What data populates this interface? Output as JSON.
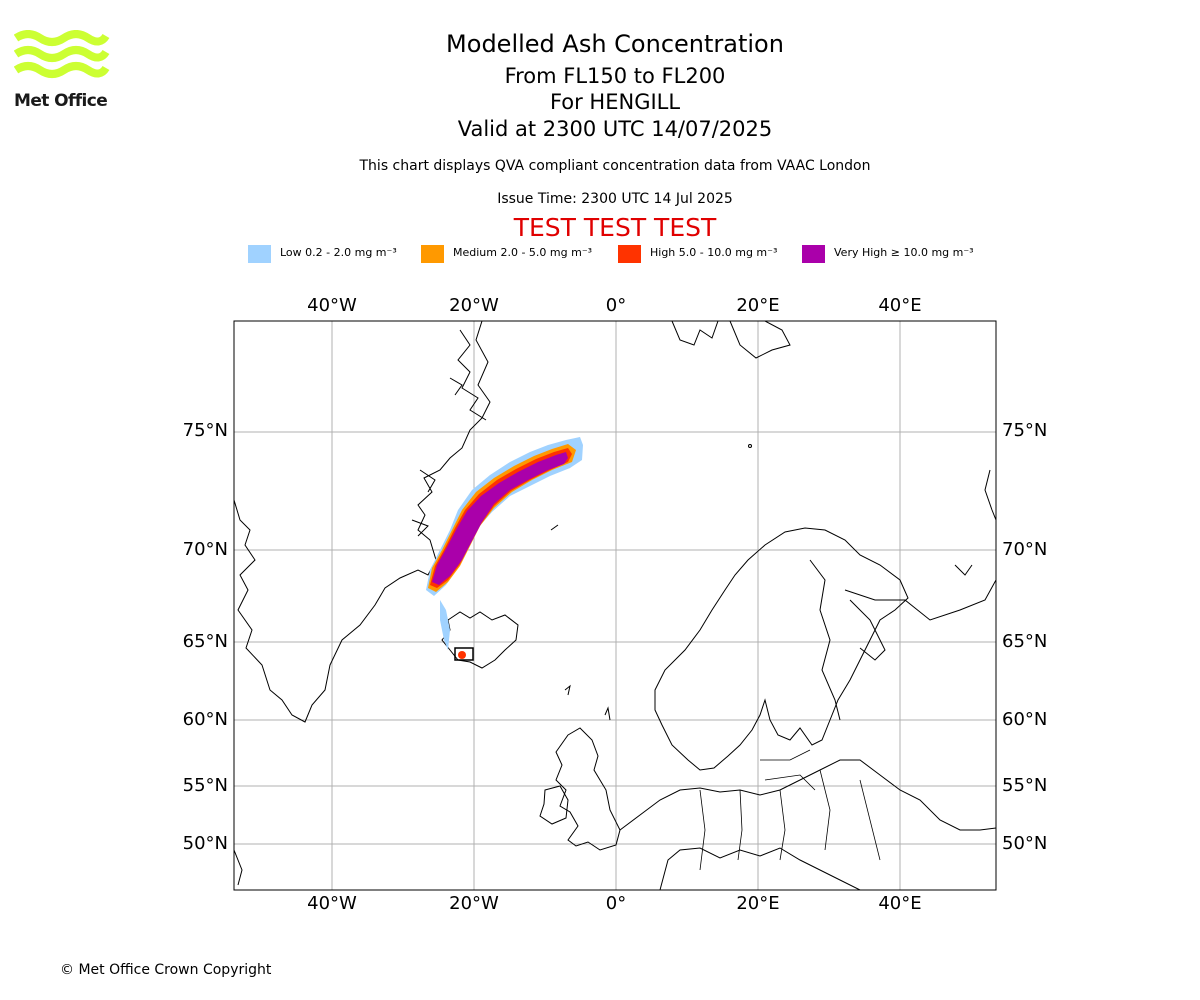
{
  "logo": {
    "text": "Met Office",
    "color": "#ccff33"
  },
  "header": {
    "title": "Modelled Ash Concentration",
    "level": "From FL150 to FL200",
    "volcano": "For HENGILL",
    "valid": "Valid at 2300 UTC 14/07/2025",
    "description": "This chart displays QVA compliant concentration data from VAAC London",
    "issue": "Issue Time: 2300 UTC 14 Jul 2025",
    "test_banner": "TEST TEST TEST"
  },
  "legend": [
    {
      "label": "Low 0.2 - 2.0 mg m⁻³",
      "color": "#a0d2ff"
    },
    {
      "label": "Medium 2.0 - 5.0 mg m⁻³",
      "color": "#ff9900"
    },
    {
      "label": "High 5.0 - 10.0 mg m⁻³",
      "color": "#ff3300"
    },
    {
      "label": "Very High ≥ 10.0 mg m⁻³",
      "color": "#aa00aa"
    }
  ],
  "axes": {
    "lon_ticks": [
      "40°W",
      "20°W",
      "0°",
      "20°E",
      "40°E"
    ],
    "lat_ticks": [
      "75°N",
      "70°N",
      "65°N",
      "60°N",
      "55°N",
      "50°N"
    ]
  },
  "footer": {
    "copyright": "© Met Office Crown Copyright"
  }
}
